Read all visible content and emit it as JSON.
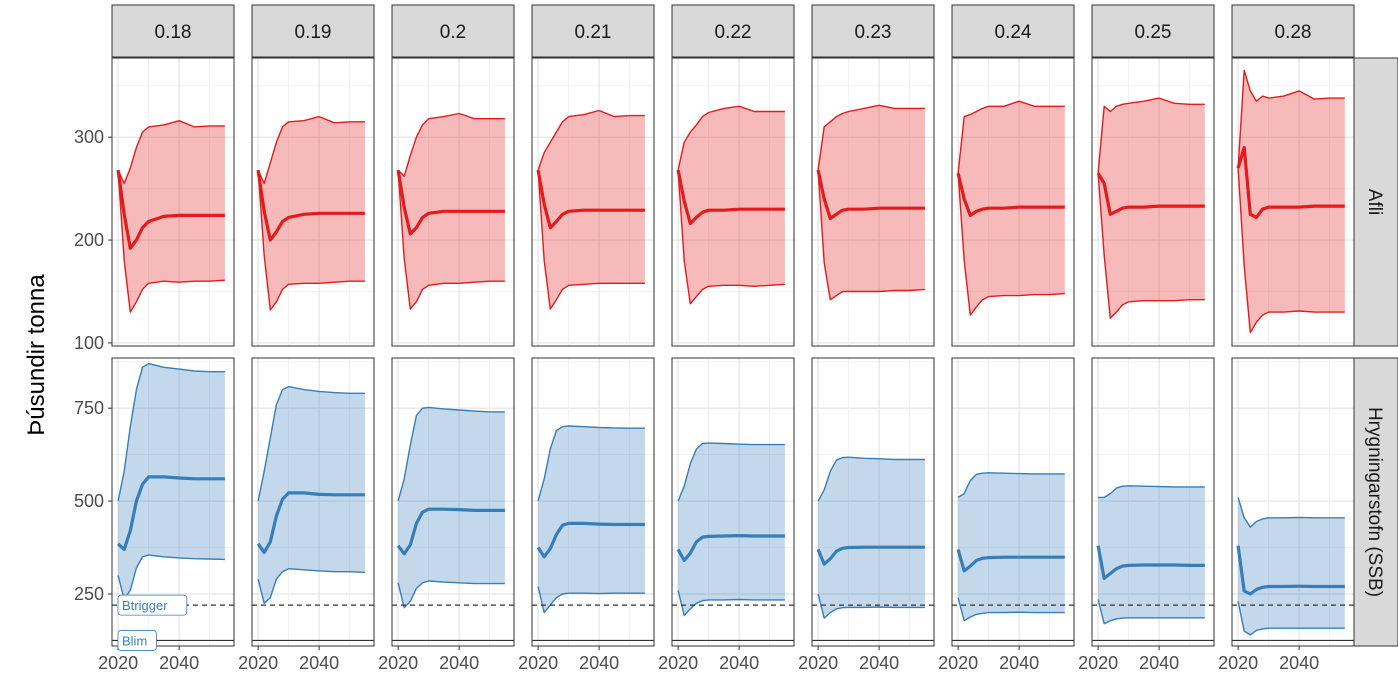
{
  "chart_data": {
    "type": "area",
    "facet_columns": [
      "0.18",
      "0.19",
      "0.2",
      "0.21",
      "0.22",
      "0.23",
      "0.24",
      "0.25",
      "0.28"
    ],
    "facet_rows": [
      "Afli",
      "Hrygningarstofn (SSB)"
    ],
    "ylabel": "Þúsundir tonna",
    "xlabel": "",
    "x_ticks": [
      2020,
      2040
    ],
    "xlim": [
      2018,
      2058
    ],
    "colors": {
      "afli": "#e41a1c",
      "ssb": "#377eb8"
    },
    "reference_lines": [
      {
        "name": "Btrigger",
        "value": 220,
        "style": "dashed",
        "row": "Hrygningarstofn (SSB)"
      },
      {
        "name": "Blim",
        "value": 125,
        "style": "solid",
        "row": "Hrygningarstofn (SSB)"
      }
    ],
    "rows": [
      {
        "name": "Afli",
        "y_ticks": [
          100,
          200,
          300
        ],
        "ylim": [
          97,
          377
        ],
        "x": [
          2020,
          2022,
          2024,
          2026,
          2028,
          2030,
          2035,
          2040,
          2045,
          2050,
          2055
        ],
        "panels": [
          {
            "median": [
              268,
              225,
              192,
              200,
              212,
              218,
              223,
              224,
              224,
              224,
              224
            ],
            "lower": [
              268,
              180,
              130,
              140,
              152,
              158,
              160,
              159,
              160,
              160,
              161
            ],
            "upper": [
              268,
              255,
              270,
              290,
              305,
              310,
              312,
              316,
              310,
              311,
              311
            ]
          },
          {
            "median": [
              268,
              228,
              200,
              208,
              218,
              222,
              225,
              226,
              226,
              226,
              226
            ],
            "lower": [
              268,
              185,
              132,
              140,
              152,
              157,
              158,
              158,
              159,
              160,
              160
            ],
            "upper": [
              268,
              255,
              275,
              295,
              310,
              315,
              316,
              320,
              314,
              315,
              315
            ]
          },
          {
            "median": [
              268,
              232,
              206,
              212,
              222,
              226,
              228,
              228,
              228,
              228,
              228
            ],
            "lower": [
              268,
              182,
              133,
              140,
              152,
              156,
              158,
              158,
              159,
              160,
              160
            ],
            "upper": [
              268,
              262,
              282,
              300,
              312,
              318,
              320,
              323,
              318,
              318,
              318
            ]
          },
          {
            "median": [
              268,
              235,
              212,
              218,
              225,
              228,
              229,
              229,
              229,
              229,
              229
            ],
            "lower": [
              268,
              180,
              133,
              142,
              152,
              156,
              157,
              158,
              158,
              158,
              158
            ],
            "upper": [
              268,
              285,
              295,
              305,
              315,
              320,
              322,
              326,
              320,
              321,
              321
            ]
          },
          {
            "median": [
              268,
              238,
              216,
              222,
              227,
              229,
              229,
              230,
              230,
              230,
              230
            ],
            "lower": [
              268,
              180,
              138,
              145,
              152,
              155,
              156,
              156,
              155,
              156,
              157
            ],
            "upper": [
              268,
              295,
              305,
              312,
              320,
              324,
              328,
              330,
              325,
              325,
              325
            ]
          },
          {
            "median": [
              268,
              240,
              221,
              225,
              229,
              230,
              230,
              231,
              231,
              231,
              231
            ],
            "lower": [
              268,
              178,
              142,
              146,
              150,
              150,
              150,
              150,
              151,
              151,
              152
            ],
            "upper": [
              268,
              310,
              315,
              320,
              323,
              325,
              328,
              331,
              328,
              328,
              328
            ]
          },
          {
            "median": [
              265,
              240,
              224,
              228,
              230,
              231,
              231,
              232,
              232,
              232,
              232
            ],
            "lower": [
              265,
              180,
              127,
              135,
              142,
              145,
              146,
              146,
              147,
              147,
              148
            ],
            "upper": [
              265,
              320,
              322,
              325,
              328,
              330,
              330,
              335,
              330,
              330,
              330
            ]
          },
          {
            "median": [
              265,
              255,
              225,
              228,
              231,
              232,
              232,
              233,
              233,
              233,
              233
            ],
            "lower": [
              265,
              185,
              124,
              130,
              137,
              140,
              141,
              141,
              141,
              142,
              142
            ],
            "upper": [
              265,
              330,
              325,
              330,
              332,
              333,
              335,
              338,
              333,
              332,
              332
            ]
          },
          {
            "median": [
              270,
              290,
              225,
              222,
              230,
              232,
              232,
              232,
              233,
              233,
              233
            ],
            "lower": [
              270,
              175,
              110,
              120,
              127,
              130,
              130,
              131,
              130,
              130,
              130
            ],
            "upper": [
              270,
              365,
              345,
              335,
              340,
              338,
              340,
              345,
              337,
              338,
              338
            ]
          }
        ]
      },
      {
        "name": "Hrygningarstofn (SSB)",
        "y_ticks": [
          250,
          500,
          750
        ],
        "ylim": [
          110,
          885
        ],
        "x": [
          2020,
          2022,
          2024,
          2026,
          2028,
          2030,
          2035,
          2040,
          2045,
          2050,
          2055
        ],
        "panels": [
          {
            "median": [
              385,
              370,
              420,
              500,
              545,
              565,
              565,
              562,
              560,
              560,
              560
            ],
            "lower": [
              300,
              235,
              260,
              320,
              350,
              355,
              350,
              347,
              345,
              344,
              343
            ],
            "upper": [
              500,
              580,
              700,
              800,
              860,
              870,
              860,
              855,
              850,
              848,
              848
            ]
          },
          {
            "median": [
              385,
              362,
              390,
              460,
              505,
              522,
              522,
              518,
              517,
              517,
              517
            ],
            "lower": [
              290,
              225,
              240,
              290,
              310,
              318,
              315,
              312,
              310,
              310,
              308
            ],
            "upper": [
              500,
              580,
              670,
              760,
              800,
              808,
              800,
              795,
              792,
              790,
              790
            ]
          },
          {
            "median": [
              380,
              358,
              382,
              440,
              470,
              478,
              478,
              477,
              475,
              475,
              475
            ],
            "lower": [
              280,
              213,
              230,
              265,
              280,
              285,
              282,
              280,
              278,
              278,
              278
            ],
            "upper": [
              500,
              560,
              650,
              730,
              750,
              752,
              748,
              745,
              742,
              740,
              740
            ]
          },
          {
            "median": [
              375,
              350,
              372,
              410,
              435,
              440,
              440,
              438,
              437,
              437,
              437
            ],
            "lower": [
              270,
              200,
              220,
              240,
              250,
              252,
              252,
              251,
              252,
              252,
              252
            ],
            "upper": [
              500,
              560,
              640,
              690,
              700,
              702,
              700,
              698,
              697,
              696,
              696
            ]
          },
          {
            "median": [
              370,
              340,
              360,
              390,
              403,
              405,
              406,
              407,
              406,
              406,
              406
            ],
            "lower": [
              260,
              192,
              210,
              225,
              232,
              234,
              234,
              235,
              234,
              234,
              234
            ],
            "upper": [
              500,
              540,
              600,
              640,
              655,
              656,
              655,
              653,
              652,
              652,
              652
            ]
          },
          {
            "median": [
              370,
              330,
              345,
              365,
              373,
              375,
              376,
              376,
              376,
              376,
              376
            ],
            "lower": [
              250,
              185,
              200,
              210,
              213,
              214,
              214,
              215,
              214,
              214,
              214
            ],
            "upper": [
              500,
              530,
              580,
              610,
              617,
              618,
              615,
              614,
              612,
              612,
              612
            ]
          },
          {
            "median": [
              370,
              312,
              325,
              340,
              346,
              348,
              349,
              349,
              349,
              349,
              349
            ],
            "lower": [
              240,
              178,
              188,
              195,
              198,
              200,
              200,
              201,
              200,
              200,
              200
            ],
            "upper": [
              510,
              520,
              555,
              572,
              575,
              576,
              575,
              574,
              573,
              573,
              573
            ]
          },
          {
            "median": [
              380,
              292,
              305,
              318,
              325,
              327,
              328,
              328,
              328,
              327,
              327
            ],
            "lower": [
              235,
              170,
              178,
              183,
              185,
              186,
              186,
              186,
              186,
              186,
              186
            ],
            "upper": [
              510,
              510,
              520,
              535,
              540,
              541,
              540,
              539,
              538,
              538,
              538
            ]
          },
          {
            "median": [
              380,
              258,
              250,
              262,
              268,
              270,
              270,
              271,
              270,
              270,
              270
            ],
            "lower": [
              230,
              150,
              140,
              152,
              156,
              158,
              158,
              158,
              158,
              158,
              158
            ],
            "upper": [
              510,
              455,
              430,
              445,
              452,
              455,
              455,
              456,
              455,
              455,
              455
            ]
          }
        ]
      }
    ]
  }
}
